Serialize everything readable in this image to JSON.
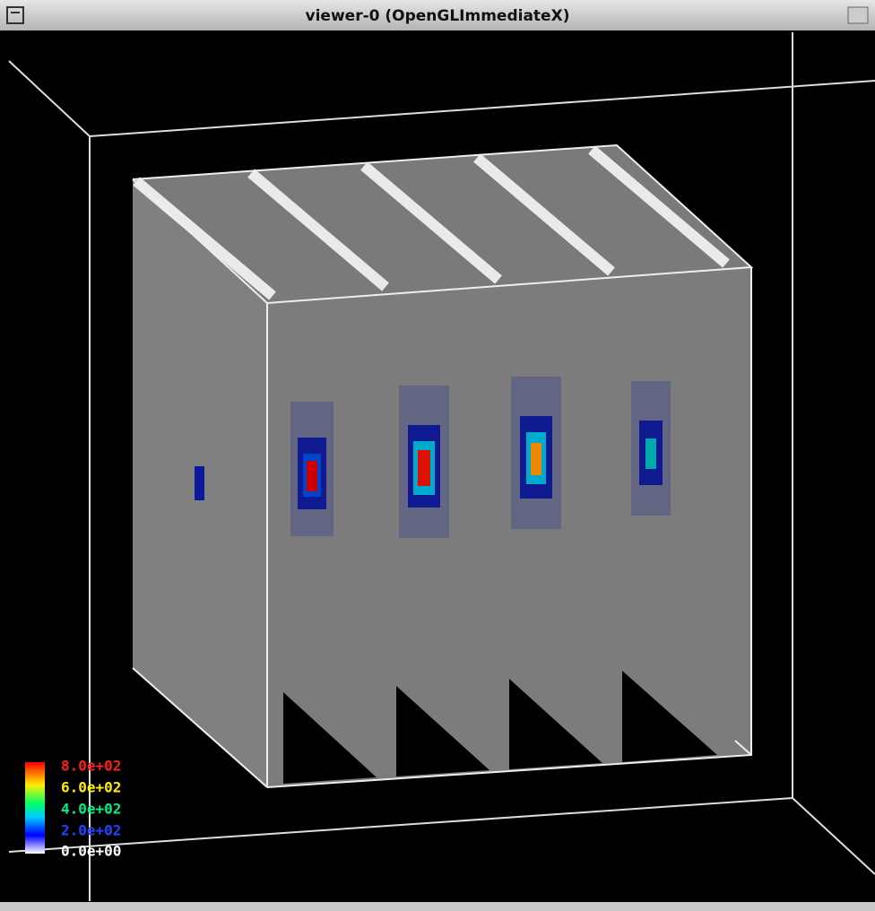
{
  "window": {
    "title": "viewer-0 (OpenGLImmediateX)"
  },
  "legend": {
    "labels": [
      "8.0e+02",
      "6.0e+02",
      "4.0e+02",
      "2.0e+02",
      "0.0e+00"
    ]
  }
}
